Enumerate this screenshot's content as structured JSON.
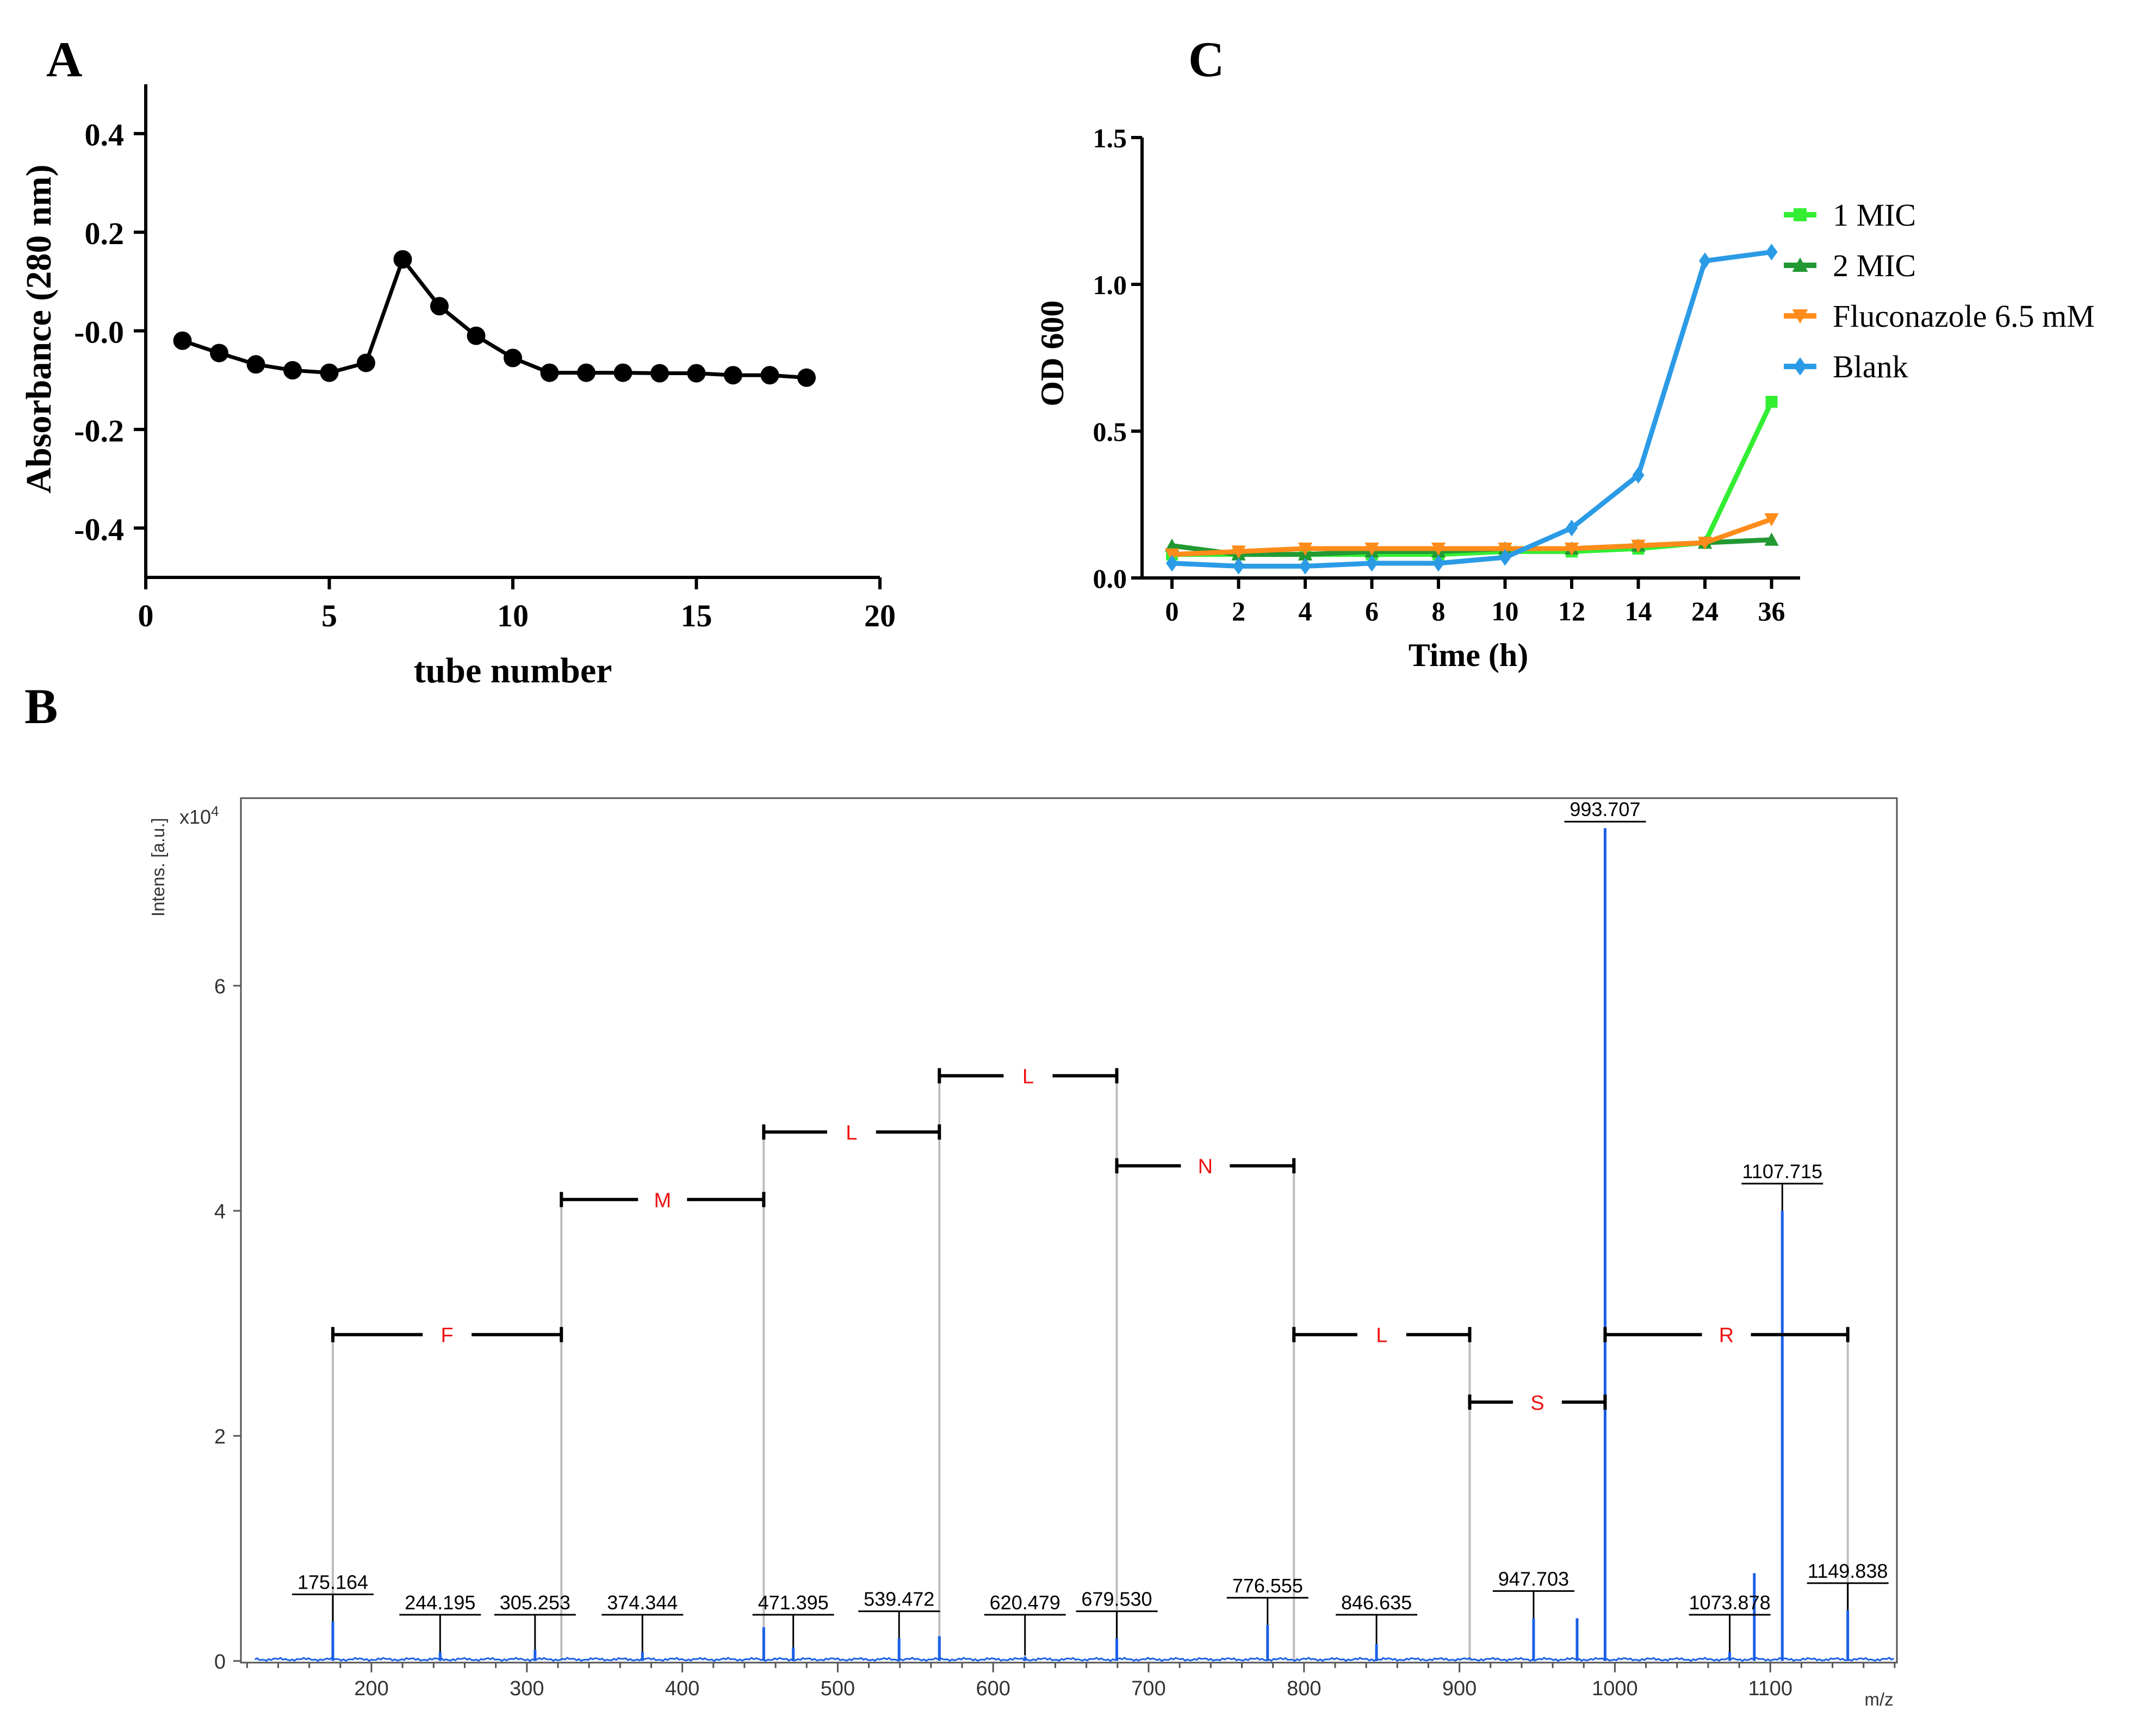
{
  "panels": {
    "a_label": "A",
    "b_label": "B",
    "c_label": "C"
  },
  "chart_data": [
    {
      "id": "A",
      "type": "line",
      "xlabel": "tube number",
      "ylabel": "Absorbance (280 nm)",
      "xlim": [
        0,
        20
      ],
      "ylim": [
        -0.5,
        0.5
      ],
      "xticks": [
        0,
        5,
        10,
        15,
        20
      ],
      "yticks": [
        0.4,
        0.2,
        0.0,
        -0.2,
        -0.4
      ],
      "ytick_labels": [
        "0.4",
        "0.2",
        "-0.0",
        "-0.2",
        "-0.4"
      ],
      "x": [
        1,
        2,
        3,
        4,
        5,
        6,
        7,
        8,
        9,
        10,
        11,
        12,
        13,
        14,
        15,
        16,
        17,
        18
      ],
      "values": [
        -0.02,
        -0.045,
        -0.068,
        -0.08,
        -0.085,
        -0.065,
        0.145,
        0.05,
        -0.01,
        -0.055,
        -0.085,
        -0.085,
        -0.085,
        -0.086,
        -0.086,
        -0.09,
        -0.09,
        -0.095
      ],
      "color": "#000000"
    },
    {
      "id": "C",
      "type": "line",
      "xlabel": "Time (h)",
      "ylabel": "OD 600",
      "categories": [
        "0",
        "2",
        "4",
        "6",
        "8",
        "10",
        "12",
        "14",
        "24",
        "36"
      ],
      "ylim": [
        0,
        1.5
      ],
      "yticks": [
        0.0,
        0.5,
        1.0,
        1.5
      ],
      "ytick_labels": [
        "0.0",
        "0.5",
        "1.0",
        "1.5"
      ],
      "legend_position": "right",
      "series": [
        {
          "name": "1 MIC",
          "color": "#33ee33",
          "marker": "square",
          "values": [
            0.08,
            0.08,
            0.08,
            0.08,
            0.08,
            0.09,
            0.09,
            0.1,
            0.12,
            0.6
          ]
        },
        {
          "name": "2 MIC",
          "color": "#229933",
          "marker": "triangle-up",
          "values": [
            0.11,
            0.08,
            0.08,
            0.09,
            0.09,
            0.1,
            0.1,
            0.11,
            0.12,
            0.13
          ]
        },
        {
          "name": "Fluconazole 6.5 mM",
          "color": "#ff8c1a",
          "marker": "triangle-down",
          "values": [
            0.08,
            0.09,
            0.1,
            0.1,
            0.1,
            0.1,
            0.1,
            0.11,
            0.12,
            0.2
          ]
        },
        {
          "name": "Blank",
          "color": "#2b9be6",
          "marker": "diamond",
          "values": [
            0.05,
            0.04,
            0.04,
            0.05,
            0.05,
            0.07,
            0.17,
            0.35,
            1.08,
            1.11
          ]
        }
      ]
    },
    {
      "id": "B",
      "type": "line",
      "xlabel": "m/z",
      "ylabel": "Intens. [a.u.]",
      "y_multiplier": "x10",
      "y_multiplier_exp": "4",
      "xlim": [
        120,
        1180
      ],
      "ylim": [
        0,
        7.5
      ],
      "xticks": [
        200,
        300,
        400,
        500,
        600,
        700,
        800,
        900,
        1000,
        1100
      ],
      "yticks": [
        0,
        2,
        4,
        6
      ],
      "color": "#1a5fe6",
      "peaks": [
        {
          "mz": 175.164,
          "intensity": 0.35,
          "label": "175.164"
        },
        {
          "mz": 244.195,
          "intensity": 0.08,
          "label": "244.195"
        },
        {
          "mz": 305.253,
          "intensity": 0.1,
          "label": "305.253"
        },
        {
          "mz": 374.344,
          "intensity": 0.08,
          "label": "374.344"
        },
        {
          "mz": 452.4,
          "intensity": 0.3,
          "label": ""
        },
        {
          "mz": 471.395,
          "intensity": 0.12,
          "label": "471.395"
        },
        {
          "mz": 539.472,
          "intensity": 0.2,
          "label": "539.472"
        },
        {
          "mz": 565.4,
          "intensity": 0.22,
          "label": ""
        },
        {
          "mz": 620.479,
          "intensity": 0.04,
          "label": "620.479"
        },
        {
          "mz": 679.53,
          "intensity": 0.2,
          "label": "679.530"
        },
        {
          "mz": 776.555,
          "intensity": 0.32,
          "label": "776.555"
        },
        {
          "mz": 846.635,
          "intensity": 0.15,
          "label": "846.635"
        },
        {
          "mz": 947.703,
          "intensity": 0.38,
          "label": "947.703"
        },
        {
          "mz": 975.7,
          "intensity": 0.38,
          "label": ""
        },
        {
          "mz": 993.707,
          "intensity": 7.4,
          "label": "993.707"
        },
        {
          "mz": 1073.878,
          "intensity": 0.08,
          "label": "1073.878"
        },
        {
          "mz": 1089.7,
          "intensity": 0.78,
          "label": ""
        },
        {
          "mz": 1107.715,
          "intensity": 4.0,
          "label": "1107.715"
        },
        {
          "mz": 1149.838,
          "intensity": 0.45,
          "label": "1149.838"
        }
      ],
      "fragments": [
        {
          "label": "F",
          "from": 175.164,
          "to": 322.2,
          "y": 2.9
        },
        {
          "label": "M",
          "from": 322.2,
          "to": 452.4,
          "y": 4.1
        },
        {
          "label": "L",
          "from": 452.4,
          "to": 565.4,
          "y": 4.7
        },
        {
          "label": "L",
          "from": 565.4,
          "to": 679.53,
          "y": 5.2
        },
        {
          "label": "N",
          "from": 679.53,
          "to": 793.5,
          "y": 4.4
        },
        {
          "label": "L",
          "from": 793.5,
          "to": 906.6,
          "y": 2.9
        },
        {
          "label": "S",
          "from": 906.6,
          "to": 993.707,
          "y": 2.3
        },
        {
          "label": "R",
          "from": 993.707,
          "to": 1149.838,
          "y": 2.9
        }
      ],
      "fragment_color": "#ee1111"
    }
  ]
}
